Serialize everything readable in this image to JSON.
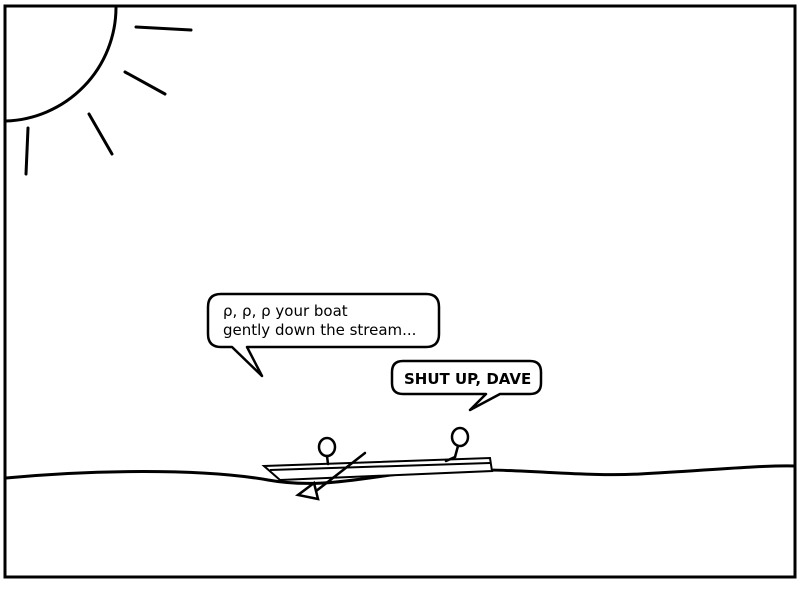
{
  "comic": {
    "bubble_1": {
      "line_1": "ρ, ρ, ρ your boat",
      "line_2": "gently down the stream..."
    },
    "bubble_2": {
      "text": "SHUT UP, DAVE"
    }
  },
  "colors": {
    "ink": "#000000",
    "paper": "#ffffff"
  }
}
